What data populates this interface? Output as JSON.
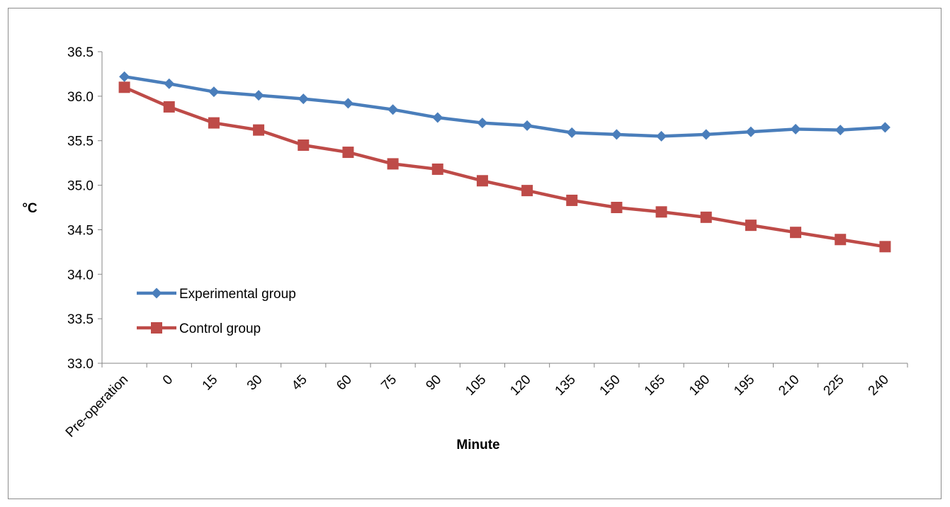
{
  "chart_data": {
    "type": "line",
    "title": "",
    "xlabel": "Minute",
    "ylabel": "°C",
    "categories": [
      "Pre-operation",
      "0",
      "15",
      "30",
      "45",
      "60",
      "75",
      "90",
      "105",
      "120",
      "135",
      "150",
      "165",
      "180",
      "195",
      "210",
      "225",
      "240"
    ],
    "ylim": [
      33.0,
      36.5
    ],
    "yticks": [
      "33.0",
      "33.5",
      "34.0",
      "34.5",
      "35.0",
      "35.5",
      "36.0",
      "36.5"
    ],
    "grid": false,
    "legend_position": "left",
    "series": [
      {
        "name": "Experimental group",
        "color": "#4a7ebb",
        "marker": "diamond",
        "values": [
          36.22,
          36.14,
          36.05,
          36.01,
          35.97,
          35.92,
          35.85,
          35.76,
          35.7,
          35.67,
          35.59,
          35.57,
          35.55,
          35.57,
          35.6,
          35.63,
          35.62,
          35.65
        ]
      },
      {
        "name": "Control group",
        "color": "#be4b48",
        "marker": "square",
        "values": [
          36.1,
          35.88,
          35.7,
          35.62,
          35.45,
          35.37,
          35.24,
          35.18,
          35.05,
          34.94,
          34.83,
          34.75,
          34.7,
          34.64,
          34.55,
          34.47,
          34.39,
          34.31
        ]
      }
    ]
  }
}
